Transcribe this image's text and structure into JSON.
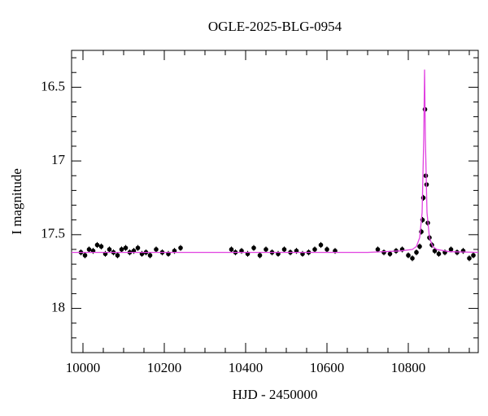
{
  "chart_data": {
    "type": "scatter",
    "title": "OGLE-2025-BLG-0954",
    "x_label": "HJD - 2450000",
    "y_label": "I magnitude",
    "xlim": [
      9972,
      10972
    ],
    "ylim": [
      18.3,
      16.25
    ],
    "xticks": [
      10000,
      10200,
      10400,
      10600,
      10800
    ],
    "yticks": [
      16.5,
      17,
      17.5,
      18
    ],
    "xminor_ticks": [
      10050,
      10100,
      10150,
      10250,
      10300,
      10350,
      10450,
      10500,
      10550,
      10650,
      10700,
      10750,
      10850,
      10900,
      10950
    ],
    "yminor_ticks": [
      16.3,
      16.4,
      16.6,
      16.7,
      16.8,
      16.9,
      17.1,
      17.2,
      17.3,
      17.4,
      17.6,
      17.7,
      17.8,
      17.9,
      18.1,
      18.2
    ],
    "series": [
      {
        "color": "#000000",
        "kind": "points",
        "x": [
          9995,
          10005,
          10015,
          10025,
          10035,
          10045,
          10055,
          10065,
          10075,
          10085,
          10095,
          10105,
          10115,
          10125,
          10135,
          10145,
          10155,
          10165,
          10180,
          10195,
          10210,
          10225,
          10240,
          10365,
          10375,
          10390,
          10405,
          10420,
          10435,
          10450,
          10465,
          10480,
          10495,
          10510,
          10525,
          10540,
          10555,
          10570,
          10585,
          10600,
          10620,
          10725,
          10740,
          10755,
          10770,
          10785,
          10800,
          10810,
          10820,
          10828,
          10832,
          10835,
          10837,
          10841,
          10843,
          10845,
          10848,
          10852,
          10858,
          10865,
          10875,
          10890,
          10905,
          10920,
          10935,
          10950,
          10960
        ],
        "values": [
          17.62,
          17.64,
          17.6,
          17.61,
          17.57,
          17.58,
          17.63,
          17.6,
          17.62,
          17.64,
          17.6,
          17.59,
          17.62,
          17.61,
          17.59,
          17.63,
          17.62,
          17.64,
          17.6,
          17.62,
          17.63,
          17.61,
          17.59,
          17.6,
          17.62,
          17.61,
          17.63,
          17.59,
          17.64,
          17.6,
          17.62,
          17.63,
          17.6,
          17.62,
          17.61,
          17.63,
          17.62,
          17.6,
          17.57,
          17.6,
          17.61,
          17.6,
          17.62,
          17.63,
          17.61,
          17.6,
          17.64,
          17.66,
          17.62,
          17.58,
          17.48,
          17.4,
          17.25,
          16.65,
          17.1,
          17.16,
          17.42,
          17.52,
          17.57,
          17.61,
          17.63,
          17.62,
          17.6,
          17.62,
          17.61,
          17.66,
          17.64
        ],
        "errors": [
          0.02,
          0.02,
          0.02,
          0.02,
          0.02,
          0.02,
          0.02,
          0.02,
          0.02,
          0.02,
          0.02,
          0.02,
          0.02,
          0.02,
          0.02,
          0.02,
          0.02,
          0.02,
          0.02,
          0.02,
          0.02,
          0.02,
          0.02,
          0.02,
          0.02,
          0.02,
          0.02,
          0.02,
          0.02,
          0.02,
          0.02,
          0.02,
          0.02,
          0.02,
          0.02,
          0.02,
          0.02,
          0.02,
          0.02,
          0.02,
          0.02,
          0.02,
          0.02,
          0.02,
          0.02,
          0.02,
          0.02,
          0.02,
          0.02,
          0.02,
          0.02,
          0.02,
          0.02,
          0.015,
          0.015,
          0.015,
          0.02,
          0.02,
          0.02,
          0.02,
          0.02,
          0.02,
          0.02,
          0.02,
          0.02,
          0.02,
          0.02
        ]
      },
      {
        "color": "#e040e0",
        "kind": "line",
        "x": [
          9972,
          10700,
          10780,
          10810,
          10820,
          10828,
          10834,
          10838,
          10840,
          10842,
          10846,
          10852,
          10860,
          10870,
          10900,
          10972
        ],
        "values": [
          17.62,
          17.62,
          17.61,
          17.6,
          17.58,
          17.52,
          17.35,
          16.85,
          16.38,
          16.85,
          17.35,
          17.52,
          17.58,
          17.6,
          17.615,
          17.62
        ]
      }
    ]
  }
}
